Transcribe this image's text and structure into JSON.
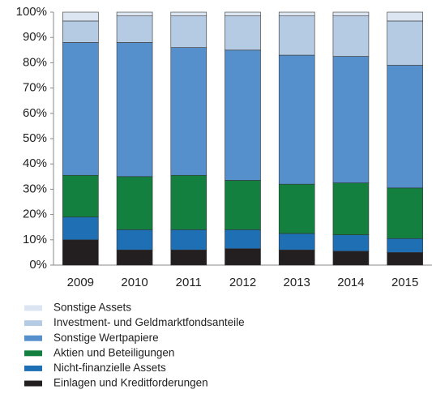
{
  "chart_data": {
    "type": "stacked_bar",
    "categories": [
      "2009",
      "2010",
      "2011",
      "2012",
      "2013",
      "2014",
      "2015"
    ],
    "series": [
      {
        "name": "Einlagen und Kreditforderungen",
        "color": "#231f20",
        "values": [
          10,
          6,
          6,
          6.5,
          6,
          5.5,
          5
        ]
      },
      {
        "name": "Nicht-finanzielle Assets",
        "color": "#1f6fb5",
        "values": [
          9,
          8,
          8,
          7.5,
          6.5,
          6.5,
          5.5
        ]
      },
      {
        "name": "Aktien und Beteiligungen",
        "color": "#148040",
        "values": [
          16.5,
          21,
          21.5,
          19.5,
          19.5,
          20.5,
          20
        ]
      },
      {
        "name": "Sonstige Wertpapiere",
        "color": "#5590cc",
        "values": [
          52.5,
          53,
          50.5,
          51.5,
          51,
          50,
          48.5
        ]
      },
      {
        "name": "Investment- und Geldmarktfondsanteile",
        "color": "#b5cbe4",
        "values": [
          8.5,
          10.5,
          12.5,
          13.5,
          15.5,
          16,
          17.5
        ]
      },
      {
        "name": "Sonstige Assets",
        "color": "#dbe6f2",
        "values": [
          3.5,
          1.5,
          1.5,
          1.5,
          1.5,
          1.5,
          3.5
        ]
      }
    ],
    "ylim": [
      0,
      100
    ],
    "yticks": [
      {
        "value": 0,
        "label": "0%"
      },
      {
        "value": 10,
        "label": "10%"
      },
      {
        "value": 20,
        "label": "20%"
      },
      {
        "value": 30,
        "label": "30%"
      },
      {
        "value": 40,
        "label": "40%"
      },
      {
        "value": 50,
        "label": "50%"
      },
      {
        "value": 60,
        "label": "60%"
      },
      {
        "value": 70,
        "label": "70%"
      },
      {
        "value": 80,
        "label": "80%"
      },
      {
        "value": 90,
        "label": "90%"
      },
      {
        "value": 100,
        "label": "100%"
      }
    ]
  }
}
